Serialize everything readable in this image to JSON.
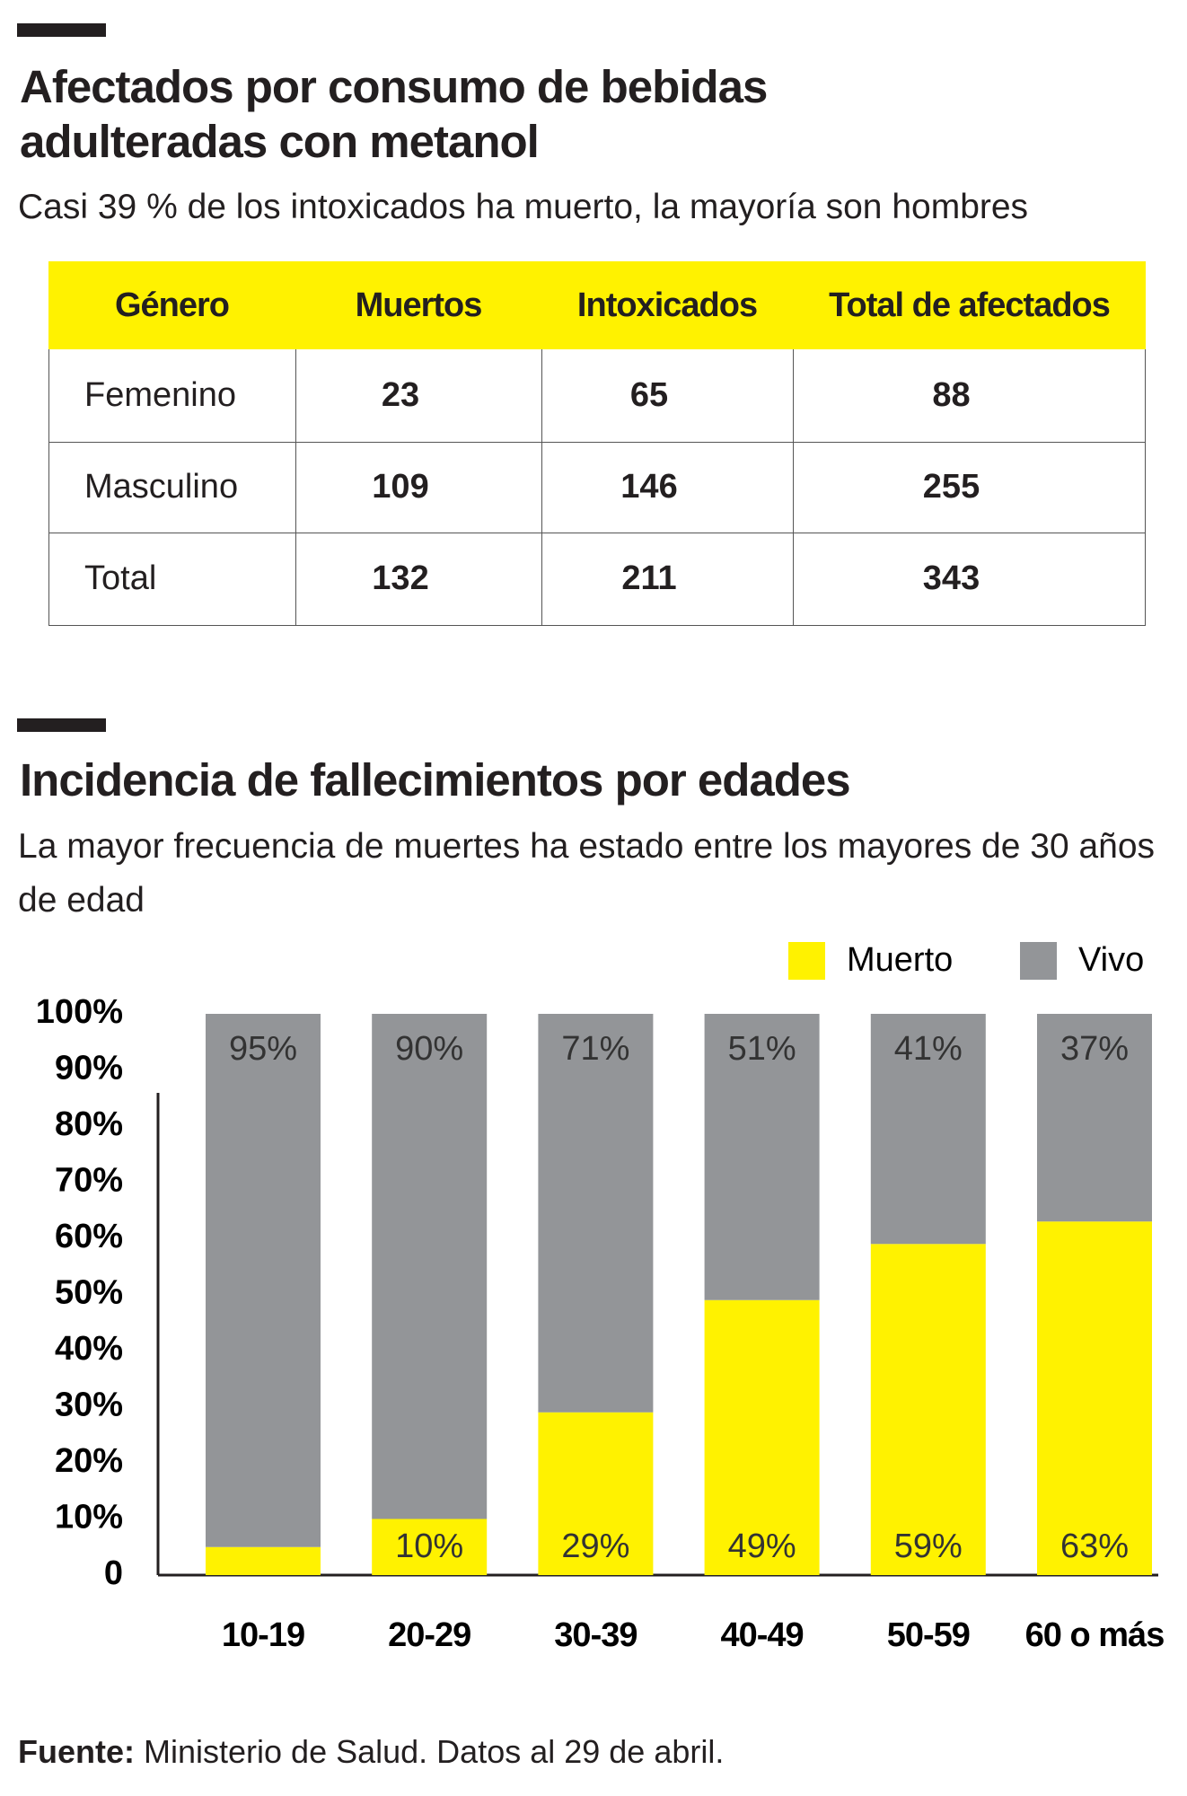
{
  "header": {
    "title": "Afectados por consumo de bebidas adulteradas con metanol",
    "subtitle": "Casi 39 % de los intoxicados ha muerto, la mayoría son hombres"
  },
  "table": {
    "columns": [
      "Género",
      "Muertos",
      "Intoxicados",
      "Total de afectados"
    ],
    "rows": [
      [
        "Femenino",
        23,
        65,
        88
      ],
      [
        "Masculino",
        109,
        146,
        255
      ],
      [
        "Total",
        132,
        211,
        343
      ]
    ]
  },
  "chart_data": {
    "type": "stacked_bar",
    "title": "Incidencia de fallecimientos por edades",
    "subtitle": "La mayor frecuencia de muertes ha estado entre los mayores de 30 años de edad",
    "categories": [
      "10-19",
      "20-29",
      "30-39",
      "40-49",
      "50-59",
      "60 o más"
    ],
    "series": [
      {
        "name": "Muerto",
        "color": "#fff200",
        "values": [
          5,
          10,
          29,
          49,
          59,
          63
        ],
        "value_labels": [
          null,
          "10%",
          "29%",
          "49%",
          "59%",
          "63%"
        ]
      },
      {
        "name": "Vivo",
        "color": "#939598",
        "values": [
          95,
          90,
          71,
          51,
          41,
          37
        ],
        "value_labels": [
          "95%",
          "90%",
          "71%",
          "51%",
          "41%",
          "37%"
        ]
      }
    ],
    "ylim": [
      0,
      100
    ],
    "yticks": [
      0,
      {
        "value": 10,
        "label": "10%"
      },
      {
        "value": 20,
        "label": "20%"
      },
      {
        "value": 30,
        "label": "30%"
      },
      {
        "value": 40,
        "label": "40%"
      },
      {
        "value": 50,
        "label": "50%"
      },
      {
        "value": 60,
        "label": "60%"
      },
      {
        "value": 70,
        "label": "70%"
      },
      {
        "value": 80,
        "label": "80%"
      },
      {
        "value": 90,
        "label": "90%"
      },
      {
        "value": 100,
        "label": "100%"
      }
    ],
    "legend": "top-right"
  },
  "source": {
    "label": "Fuente:",
    "text": "Ministerio de Salud. Datos al 29 de abril."
  }
}
